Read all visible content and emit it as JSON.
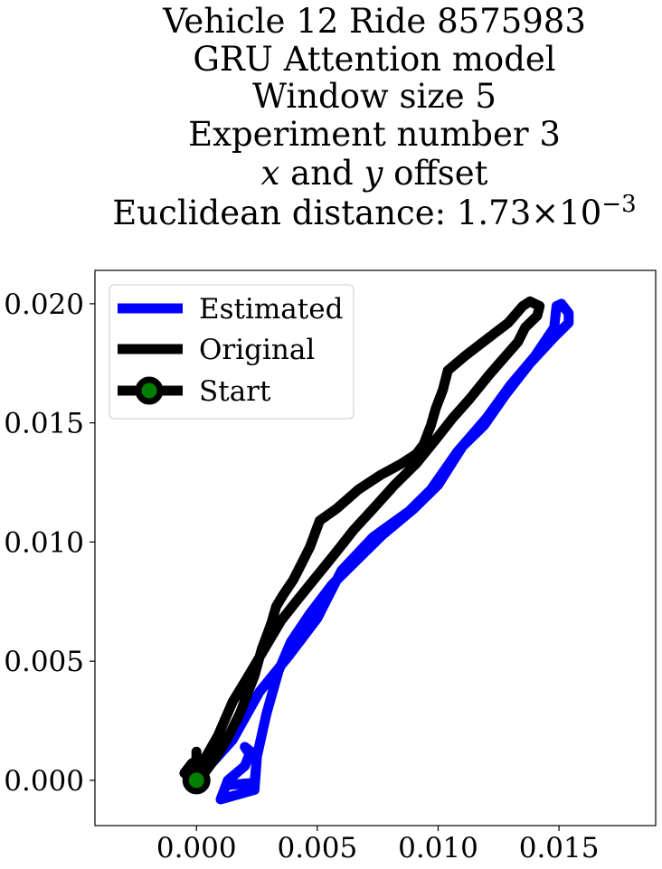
{
  "chart_data": {
    "type": "line",
    "title_lines": [
      "Vehicle 12 Ride 8575983",
      "GRU Attention model",
      "Window size 5",
      "Experiment number 3"
    ],
    "title_offset_line": {
      "x_var": "x",
      "and_text": " and ",
      "y_var": "y",
      "rest": " offset"
    },
    "title_distance": {
      "prefix": "Euclidean distance: ",
      "mantissa": "1.73",
      "times": "×10",
      "exponent": "−3"
    },
    "xlim": [
      -0.0042,
      0.019
    ],
    "ylim": [
      -0.0019,
      0.0214
    ],
    "x_ticks": [
      0.0,
      0.005,
      0.01,
      0.015
    ],
    "x_tick_labels": [
      "0.000",
      "0.005",
      "0.010",
      "0.015"
    ],
    "y_ticks": [
      0.0,
      0.005,
      0.01,
      0.015,
      0.02
    ],
    "y_tick_labels": [
      "0.000",
      "0.005",
      "0.010",
      "0.015",
      "0.020"
    ],
    "grid": false,
    "legend_position": "upper-left",
    "legend": [
      "Estimated",
      "Original",
      "Start"
    ],
    "series": [
      {
        "name": "Estimated",
        "color": "#0000ff",
        "points": [
          [
            0.0,
            0.0
          ],
          [
            0.0015,
            0.0017
          ],
          [
            0.0026,
            0.0037
          ],
          [
            0.0038,
            0.0052
          ],
          [
            0.005,
            0.0068
          ],
          [
            0.006,
            0.0088
          ],
          [
            0.0073,
            0.0102
          ],
          [
            0.0088,
            0.0113
          ],
          [
            0.0097,
            0.0122
          ],
          [
            0.0108,
            0.0138
          ],
          [
            0.012,
            0.0152
          ],
          [
            0.013,
            0.0166
          ],
          [
            0.014,
            0.0178
          ],
          [
            0.0148,
            0.019
          ],
          [
            0.0149,
            0.0199
          ],
          [
            0.0151,
            0.02
          ],
          [
            0.0154,
            0.0196
          ],
          [
            0.0154,
            0.0192
          ],
          [
            0.0148,
            0.0186
          ],
          [
            0.0138,
            0.0175
          ],
          [
            0.0128,
            0.0162
          ],
          [
            0.0119,
            0.0149
          ],
          [
            0.011,
            0.014
          ],
          [
            0.01,
            0.0124
          ],
          [
            0.009,
            0.0114
          ],
          [
            0.0077,
            0.0103
          ],
          [
            0.0066,
            0.0092
          ],
          [
            0.0056,
            0.0082
          ],
          [
            0.0047,
            0.007
          ],
          [
            0.0039,
            0.0058
          ],
          [
            0.0034,
            0.0046
          ],
          [
            0.0029,
            0.0028
          ],
          [
            0.0025,
            0.001
          ],
          [
            0.0024,
            -0.0004
          ],
          [
            0.001,
            -0.0008
          ],
          [
            0.0013,
            0.0
          ],
          [
            0.002,
            0.0006
          ],
          [
            0.0022,
            0.0011
          ],
          [
            0.002,
            0.0014
          ],
          [
            0.0025,
            0.001
          ],
          [
            0.0024,
            -0.0001
          ],
          [
            0.0013,
            -0.0002
          ]
        ]
      },
      {
        "name": "Original",
        "color": "#000000",
        "points": [
          [
            0.0,
            0.0
          ],
          [
            0.0,
            0.0012
          ],
          [
            0.0,
            0.0004
          ],
          [
            0.0004,
            0.0004
          ],
          [
            0.0009,
            0.0011
          ],
          [
            0.0013,
            0.0018
          ],
          [
            0.0018,
            0.0028
          ],
          [
            0.0024,
            0.0044
          ],
          [
            0.0027,
            0.0055
          ],
          [
            0.0031,
            0.0066
          ],
          [
            0.0033,
            0.0073
          ],
          [
            0.0036,
            0.0078
          ],
          [
            0.004,
            0.0084
          ],
          [
            0.0043,
            0.009
          ],
          [
            0.0047,
            0.0098
          ],
          [
            0.0051,
            0.0109
          ],
          [
            0.0058,
            0.0114
          ],
          [
            0.0067,
            0.0122
          ],
          [
            0.0076,
            0.0128
          ],
          [
            0.0085,
            0.0133
          ],
          [
            0.0091,
            0.0137
          ],
          [
            0.0094,
            0.0141
          ],
          [
            0.0097,
            0.0149
          ],
          [
            0.0099,
            0.0156
          ],
          [
            0.0102,
            0.0164
          ],
          [
            0.0104,
            0.0172
          ],
          [
            0.0111,
            0.0178
          ],
          [
            0.012,
            0.0185
          ],
          [
            0.0129,
            0.0192
          ],
          [
            0.0135,
            0.0199
          ],
          [
            0.0138,
            0.0201
          ],
          [
            0.0142,
            0.0199
          ],
          [
            0.0141,
            0.0195
          ],
          [
            0.0136,
            0.019
          ],
          [
            0.0133,
            0.0184
          ],
          [
            0.0127,
            0.0177
          ],
          [
            0.0121,
            0.017
          ],
          [
            0.0113,
            0.016
          ],
          [
            0.0106,
            0.0152
          ],
          [
            0.0099,
            0.0143
          ],
          [
            0.0091,
            0.0133
          ],
          [
            0.0082,
            0.0124
          ],
          [
            0.0074,
            0.0115
          ],
          [
            0.0065,
            0.0105
          ],
          [
            0.0058,
            0.0096
          ],
          [
            0.005,
            0.0086
          ],
          [
            0.0042,
            0.0076
          ],
          [
            0.0035,
            0.0067
          ],
          [
            0.0028,
            0.0055
          ],
          [
            0.0021,
            0.0043
          ],
          [
            0.0015,
            0.0033
          ],
          [
            0.0009,
            0.0019
          ],
          [
            0.0004,
            0.001
          ],
          [
            0.0,
            0.0004
          ],
          [
            -0.0005,
            0.0003
          ],
          [
            -0.0002,
            0.0007
          ],
          [
            0.0001,
            0.0009
          ],
          [
            0.0001,
            0.0002
          ],
          [
            0.0,
            0.0
          ]
        ]
      }
    ],
    "start_point": {
      "name": "Start",
      "x": 0.0,
      "y": 0.0,
      "marker_color": "#008000",
      "edge_color": "#000000"
    }
  }
}
